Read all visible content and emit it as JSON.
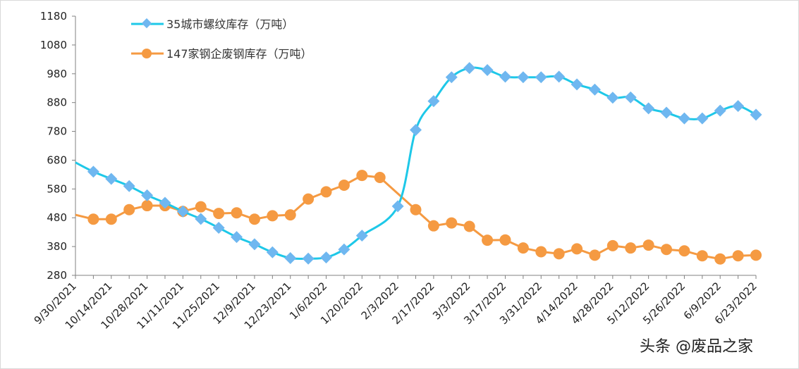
{
  "chart_data": {
    "type": "line",
    "title": "",
    "xlabel": "",
    "ylabel": "",
    "ylim": [
      280,
      1180
    ],
    "yticks": [
      280,
      380,
      480,
      580,
      680,
      780,
      880,
      980,
      1080,
      1180
    ],
    "x_tick_labels": [
      "9/30/2021",
      "10/14/2021",
      "10/28/2021",
      "11/11/2021",
      "11/25/2021",
      "12/9/2021",
      "12/23/2021",
      "1/6/2022",
      "1/20/2022",
      "2/3/2022",
      "2/17/2022",
      "3/3/2022",
      "3/17/2022",
      "3/31/2022",
      "4/14/2022",
      "4/28/2022",
      "5/12/2022",
      "5/26/2022",
      "6/9/2022",
      "6/23/2022"
    ],
    "x": [
      "9/30/2021",
      "10/7/2021",
      "10/14/2021",
      "10/21/2021",
      "10/28/2021",
      "11/4/2021",
      "11/11/2021",
      "11/18/2021",
      "11/25/2021",
      "12/2/2021",
      "12/9/2021",
      "12/16/2021",
      "12/23/2021",
      "12/30/2021",
      "1/6/2022",
      "1/13/2022",
      "1/20/2022",
      "1/27/2022",
      "2/3/2022",
      "2/10/2022",
      "2/17/2022",
      "2/24/2022",
      "3/3/2022",
      "3/10/2022",
      "3/17/2022",
      "3/24/2022",
      "3/31/2022",
      "4/7/2022",
      "4/14/2022",
      "4/21/2022",
      "4/28/2022",
      "5/5/2022",
      "5/12/2022",
      "5/19/2022",
      "5/26/2022",
      "6/2/2022",
      "6/9/2022",
      "6/16/2022",
      "6/23/2022"
    ],
    "legend_position": "top-left",
    "series": [
      {
        "name": "35城市螺纹库存（万吨）",
        "color": "#1ec8e8",
        "marker_color": "#6fb7f0",
        "marker": "diamond",
        "smooth": true,
        "values": [
          672,
          640,
          615,
          590,
          558,
          532,
          502,
          476,
          445,
          413,
          388,
          360,
          340,
          338,
          342,
          370,
          418,
          null,
          520,
          785,
          885,
          968,
          1000,
          993,
          970,
          968,
          968,
          970,
          943,
          925,
          897,
          898,
          860,
          845,
          825,
          825,
          852,
          868,
          838
        ],
        "markers_on": [
          false,
          true,
          true,
          true,
          true,
          true,
          true,
          true,
          true,
          true,
          true,
          true,
          true,
          true,
          true,
          true,
          true,
          false,
          true,
          true,
          true,
          true,
          true,
          true,
          true,
          true,
          true,
          true,
          true,
          true,
          true,
          true,
          true,
          true,
          true,
          true,
          true,
          true,
          true
        ]
      },
      {
        "name": "147家钢企废钢库存（万吨）",
        "color": "#f59a42",
        "marker_color": "#f59a42",
        "marker": "circle",
        "smooth": false,
        "values": [
          490,
          475,
          475,
          508,
          522,
          522,
          502,
          518,
          495,
          497,
          475,
          487,
          490,
          545,
          570,
          593,
          627,
          620,
          null,
          508,
          452,
          462,
          450,
          402,
          403,
          375,
          362,
          355,
          372,
          350,
          383,
          375,
          385,
          370,
          365,
          348,
          337,
          348,
          350
        ],
        "markers_on": [
          false,
          true,
          true,
          true,
          true,
          true,
          true,
          true,
          true,
          true,
          true,
          true,
          true,
          true,
          true,
          true,
          true,
          true,
          false,
          true,
          true,
          true,
          true,
          true,
          true,
          true,
          true,
          true,
          true,
          true,
          true,
          true,
          true,
          true,
          true,
          true,
          true,
          true,
          true
        ]
      }
    ]
  },
  "watermark": {
    "text": "头条 @废品之家"
  }
}
